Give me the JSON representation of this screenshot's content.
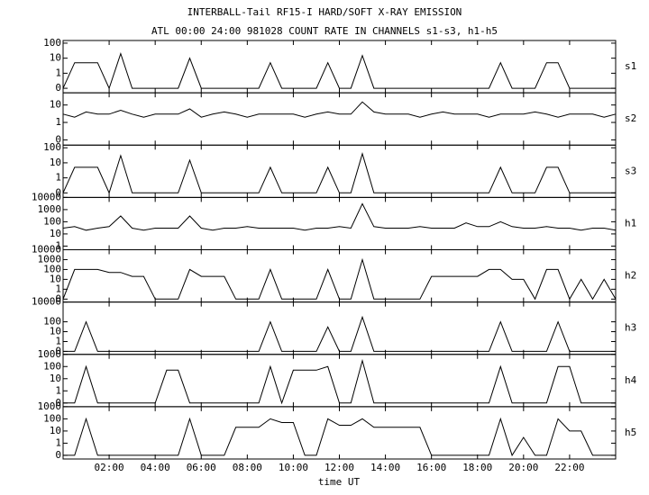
{
  "chart_data": {
    "type": "line",
    "log_scale": true,
    "title": "INTERBALL-Tail RF15-I HARD/SOFT X-RAY EMISSION",
    "subtitle": "ATL 00:00 24:00 981028  COUNT RATE IN CHANNELS s1-s3, h1-h5",
    "xlabel": "time UT",
    "xlim": [
      0,
      24
    ],
    "xticks": [
      {
        "value": 2,
        "label": "02:00"
      },
      {
        "value": 4,
        "label": "04:00"
      },
      {
        "value": 6,
        "label": "06:00"
      },
      {
        "value": 8,
        "label": "08:00"
      },
      {
        "value": 10,
        "label": "10:00"
      },
      {
        "value": 12,
        "label": "12:00"
      },
      {
        "value": 14,
        "label": "14:00"
      },
      {
        "value": 16,
        "label": "16:00"
      },
      {
        "value": 18,
        "label": "18:00"
      },
      {
        "value": 20,
        "label": "20:00"
      },
      {
        "value": 22,
        "label": "22:00"
      }
    ],
    "x": [
      0,
      0.5,
      1,
      1.5,
      2,
      2.5,
      3,
      3.5,
      4,
      4.5,
      5,
      5.5,
      6,
      6.5,
      7,
      7.5,
      8,
      8.5,
      9,
      9.5,
      10,
      10.5,
      11,
      11.5,
      12,
      12.5,
      13,
      13.5,
      14,
      14.5,
      15,
      15.5,
      16,
      16.5,
      17,
      17.5,
      18,
      18.5,
      19,
      19.5,
      20,
      20.5,
      21,
      21.5,
      22,
      22.5,
      23,
      23.5,
      24
    ],
    "series": [
      {
        "name": "s1",
        "color": "#000000",
        "ylim": [
          0.05,
          150
        ],
        "yticks": [
          100,
          10,
          1,
          {
            "value": 0.1,
            "label": "0"
          }
        ],
        "values": [
          0.1,
          5,
          5,
          5,
          0.1,
          20,
          0.1,
          0.1,
          0.1,
          0.1,
          0.1,
          10,
          0.1,
          0.1,
          0.1,
          0.1,
          0.1,
          0.1,
          5,
          0.1,
          0.1,
          0.1,
          0.1,
          5,
          0.1,
          0.1,
          15,
          0.1,
          0.1,
          0.1,
          0.1,
          0.1,
          0.1,
          0.1,
          0.1,
          0.1,
          0.1,
          0.1,
          5,
          0.1,
          0.1,
          0.1,
          5,
          5,
          0.1,
          0.1,
          0.1,
          0.1,
          0.1
        ]
      },
      {
        "name": "s2",
        "color": "#000000",
        "ylim": [
          0.05,
          50
        ],
        "yticks": [
          10,
          1,
          {
            "value": 0.1,
            "label": "0"
          }
        ],
        "values": [
          3,
          2,
          4,
          3,
          3,
          5,
          3,
          2,
          3,
          3,
          3,
          6,
          2,
          3,
          4,
          3,
          2,
          3,
          3,
          3,
          3,
          2,
          3,
          4,
          3,
          3,
          15,
          4,
          3,
          3,
          3,
          2,
          3,
          4,
          3,
          3,
          3,
          2,
          3,
          3,
          3,
          4,
          3,
          2,
          3,
          3,
          3,
          2,
          3
        ]
      },
      {
        "name": "s3",
        "color": "#000000",
        "ylim": [
          0.05,
          150
        ],
        "yticks": [
          100,
          10,
          1,
          {
            "value": 0.1,
            "label": "0"
          }
        ],
        "values": [
          0.1,
          5,
          5,
          5,
          0.1,
          30,
          0.1,
          0.1,
          0.1,
          0.1,
          0.1,
          15,
          0.1,
          0.1,
          0.1,
          0.1,
          0.1,
          0.1,
          5,
          0.1,
          0.1,
          0.1,
          0.1,
          5,
          0.1,
          0.1,
          40,
          0.1,
          0.1,
          0.1,
          0.1,
          0.1,
          0.1,
          0.1,
          0.1,
          0.1,
          0.1,
          0.1,
          5,
          0.1,
          0.1,
          0.1,
          5,
          5,
          0.1,
          0.1,
          0.1,
          0.1,
          0.1
        ]
      },
      {
        "name": "h1",
        "color": "#000000",
        "ylim": [
          0.5,
          10000
        ],
        "yticks": [
          10000,
          1000,
          100,
          10,
          1
        ],
        "values": [
          30,
          40,
          20,
          30,
          40,
          300,
          30,
          20,
          30,
          30,
          30,
          300,
          30,
          20,
          30,
          30,
          40,
          30,
          30,
          30,
          30,
          20,
          30,
          30,
          40,
          30,
          3000,
          40,
          30,
          30,
          30,
          40,
          30,
          30,
          30,
          80,
          40,
          40,
          100,
          40,
          30,
          30,
          40,
          30,
          30,
          20,
          30,
          30,
          20
        ]
      },
      {
        "name": "h2",
        "color": "#000000",
        "ylim": [
          0.05,
          10000
        ],
        "yticks": [
          10000,
          1000,
          100,
          10,
          1,
          {
            "value": 0.1,
            "label": "0"
          }
        ],
        "values": [
          0.1,
          100,
          100,
          100,
          50,
          50,
          20,
          20,
          0.1,
          0.1,
          0.1,
          100,
          20,
          20,
          20,
          0.1,
          0.1,
          0.1,
          100,
          0.1,
          0.1,
          0.1,
          0.1,
          100,
          0.1,
          0.1,
          1000,
          0.1,
          0.1,
          0.1,
          0.1,
          0.1,
          20,
          20,
          20,
          20,
          20,
          100,
          100,
          10,
          10,
          0.1,
          100,
          100,
          0.1,
          10,
          0.1,
          10,
          0.1
        ]
      },
      {
        "name": "h3",
        "color": "#000000",
        "ylim": [
          0.05,
          10000
        ],
        "yticks": [
          10000,
          100,
          10,
          1,
          {
            "value": 0.1,
            "label": "0"
          }
        ],
        "values": [
          0.1,
          0.1,
          100,
          0.1,
          0.1,
          0.1,
          0.1,
          0.1,
          0.1,
          0.1,
          0.1,
          0.1,
          0.1,
          0.1,
          0.1,
          0.1,
          0.1,
          0.1,
          100,
          0.1,
          0.1,
          0.1,
          0.1,
          30,
          0.1,
          0.1,
          300,
          0.1,
          0.1,
          0.1,
          0.1,
          0.1,
          0.1,
          0.1,
          0.1,
          0.1,
          0.1,
          0.1,
          100,
          0.1,
          0.1,
          0.1,
          0.1,
          100,
          0.1,
          0.1,
          0.1,
          0.1,
          0.1
        ]
      },
      {
        "name": "h4",
        "color": "#000000",
        "ylim": [
          0.05,
          1000
        ],
        "yticks": [
          1000,
          100,
          10,
          1,
          {
            "value": 0.1,
            "label": "0"
          }
        ],
        "values": [
          0.1,
          0.1,
          100,
          0.1,
          0.1,
          0.1,
          0.1,
          0.1,
          0.1,
          50,
          50,
          0.1,
          0.1,
          0.1,
          0.1,
          0.1,
          0.1,
          0.1,
          100,
          0.1,
          50,
          50,
          50,
          100,
          0.1,
          0.1,
          300,
          0.1,
          0.1,
          0.1,
          0.1,
          0.1,
          0.1,
          0.1,
          0.1,
          0.1,
          0.1,
          0.1,
          100,
          0.1,
          0.1,
          0.1,
          0.1,
          100,
          100,
          0.1,
          0.1,
          0.1,
          0.1
        ]
      },
      {
        "name": "h5",
        "color": "#000000",
        "ylim": [
          0.05,
          1000
        ],
        "yticks": [
          1000,
          100,
          10,
          1,
          {
            "value": 0.1,
            "label": "0"
          }
        ],
        "values": [
          0.1,
          0.1,
          100,
          0.1,
          0.1,
          0.1,
          0.1,
          0.1,
          0.1,
          0.1,
          0.1,
          100,
          0.1,
          0.1,
          0.1,
          20,
          20,
          20,
          100,
          50,
          50,
          0.1,
          0.1,
          100,
          30,
          30,
          100,
          20,
          20,
          20,
          20,
          20,
          0.1,
          0.1,
          0.1,
          0.1,
          0.1,
          0.1,
          100,
          0.1,
          3,
          0.1,
          0.1,
          100,
          10,
          10,
          0.1,
          0.1,
          0.1
        ]
      }
    ]
  }
}
